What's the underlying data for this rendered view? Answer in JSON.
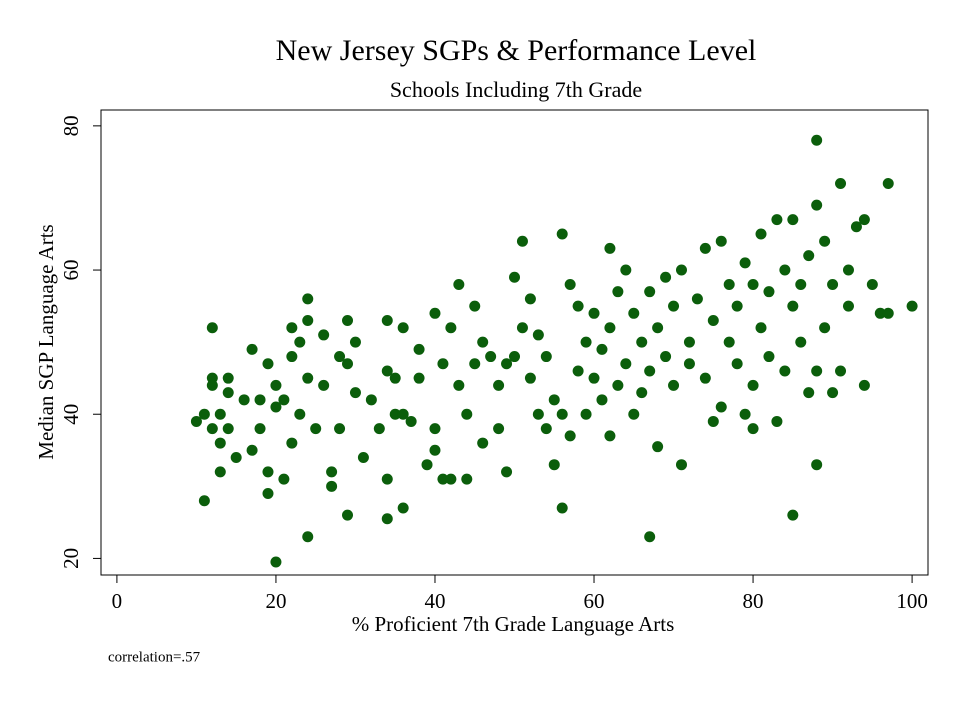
{
  "chart_data": {
    "type": "scatter",
    "title": "New Jersey SGPs & Performance Level",
    "subtitle": "Schools Including 7th Grade",
    "x_label": "% Proficient 7th Grade Language Arts",
    "y_label": "Median SGP Language Arts",
    "annotation": "correlation=.57",
    "color": "#0b5e0b",
    "xlim": [
      -2,
      102
    ],
    "xticks": [
      0,
      20,
      40,
      60,
      80,
      100
    ],
    "ylim": [
      17.7,
      82.2
    ],
    "yticks": [
      20,
      40,
      60,
      80
    ],
    "x": [
      10,
      11,
      11,
      12,
      12,
      12,
      12,
      13,
      13,
      13,
      14,
      14,
      14,
      15,
      16,
      17,
      17,
      18,
      18,
      19,
      19,
      19,
      20,
      20,
      20,
      21,
      21,
      22,
      22,
      22,
      23,
      23,
      24,
      24,
      24,
      24,
      25,
      26,
      26,
      27,
      27,
      28,
      28,
      29,
      29,
      29,
      30,
      30,
      31,
      32,
      33,
      34,
      34,
      34,
      34,
      35,
      35,
      36,
      36,
      36,
      37,
      38,
      38,
      39,
      40,
      40,
      40,
      41,
      41,
      42,
      42,
      43,
      43,
      44,
      44,
      45,
      45,
      46,
      46,
      47,
      48,
      48,
      49,
      49,
      50,
      50,
      51,
      51,
      52,
      52,
      53,
      53,
      54,
      54,
      55,
      55,
      56,
      56,
      56,
      57,
      57,
      58,
      58,
      59,
      59,
      60,
      60,
      61,
      61,
      62,
      62,
      62,
      63,
      63,
      64,
      64,
      65,
      65,
      66,
      66,
      67,
      67,
      67,
      68,
      68,
      69,
      69,
      70,
      70,
      71,
      71,
      72,
      72,
      73,
      74,
      74,
      75,
      75,
      76,
      76,
      77,
      77,
      78,
      78,
      79,
      79,
      80,
      80,
      80,
      81,
      81,
      82,
      82,
      83,
      83,
      84,
      84,
      85,
      85,
      85,
      86,
      86,
      87,
      87,
      88,
      88,
      88,
      88,
      89,
      89,
      90,
      90,
      91,
      91,
      92,
      92,
      93,
      94,
      94,
      95,
      96,
      97,
      97,
      100
    ],
    "y": [
      39,
      40,
      28,
      52,
      45,
      44,
      38,
      36,
      32,
      40,
      45,
      43,
      38,
      34,
      42,
      49,
      35,
      42,
      38,
      29,
      32,
      47,
      19.5,
      44,
      41,
      42,
      31,
      52,
      36,
      48,
      50,
      40,
      56,
      53,
      23,
      45,
      38,
      51,
      44,
      32,
      30,
      48,
      38,
      26,
      53,
      47,
      50,
      43,
      34,
      42,
      38,
      46,
      31,
      25.5,
      53,
      40,
      45,
      27,
      52,
      40,
      39,
      45,
      49,
      33,
      54,
      38,
      35,
      31,
      47,
      52,
      31,
      58,
      44,
      31,
      40,
      55,
      47,
      50,
      36,
      48,
      44,
      38,
      32,
      47,
      59,
      48,
      64,
      52,
      56,
      45,
      40,
      51,
      48,
      38,
      42,
      33,
      65,
      27,
      40,
      58,
      37,
      46,
      55,
      50,
      40,
      45,
      54,
      42,
      49,
      63,
      37,
      52,
      44,
      57,
      60,
      47,
      40,
      54,
      50,
      43,
      23,
      57,
      46,
      52,
      35.5,
      48,
      59,
      44,
      55,
      33,
      60,
      50,
      47,
      56,
      63,
      45,
      53,
      39,
      64,
      41,
      58,
      50,
      55,
      47,
      61,
      40,
      58,
      38,
      44,
      65,
      52,
      57,
      48,
      67,
      39,
      60,
      46,
      67,
      26,
      55,
      58,
      50,
      62,
      43,
      78,
      69,
      33,
      46,
      64,
      52,
      58,
      43,
      72,
      46,
      60,
      55,
      66,
      67,
      44,
      58,
      54,
      72,
      54,
      55
    ]
  }
}
